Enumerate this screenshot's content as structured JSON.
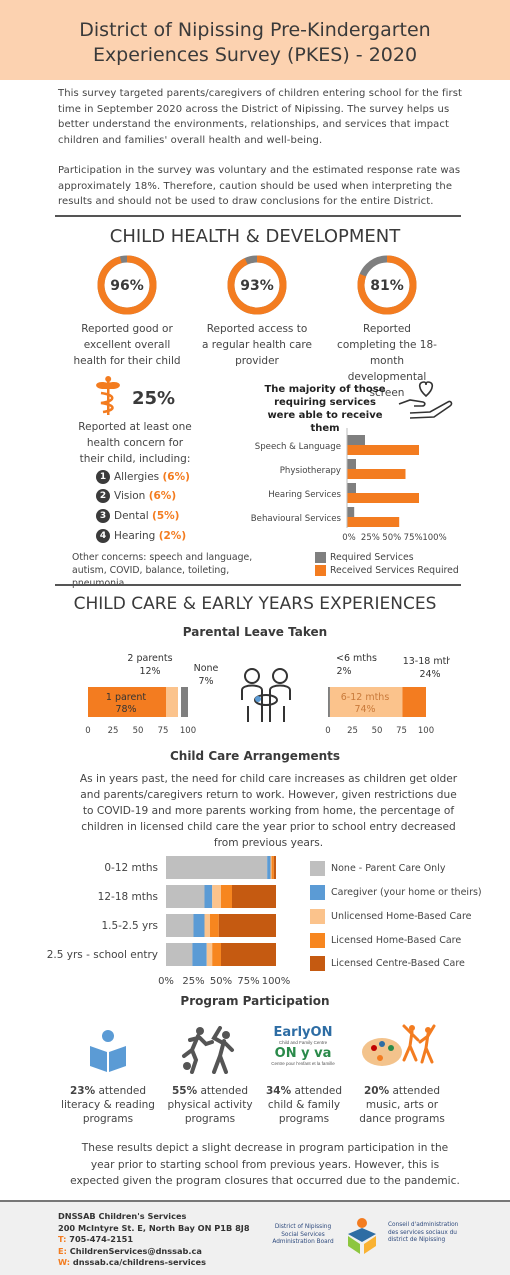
{
  "header": {
    "title_line1": "District of Nipissing Pre-Kindergarten",
    "title_line2": "Experiences Survey (PKES) - 2020"
  },
  "intro": {
    "p1": "This survey targeted parents/caregivers of children entering school for the first time in September 2020 across the District of Nipissing.  The survey helps us better understand the environments, relationships, and services that impact children and families' overall health and well-being.",
    "p2": "Participation in the survey was voluntary and the estimated response rate was approximately 18%.  Therefore, caution should be used when interpreting the results and should not be used to draw conclusions for the entire District."
  },
  "colors": {
    "orange": "#f37c20",
    "gray": "#7f7f7f",
    "dark": "#3b3b3b",
    "light_orange": "#fbc38c",
    "blue": "#5b9bd5",
    "dark_orange": "#c55a11",
    "light_gray": "#bfbfbf"
  },
  "health": {
    "title": "CHILD HEALTH & DEVELOPMENT",
    "donuts": [
      {
        "value": 96,
        "label": "96%",
        "text": "Reported good or excellent overall health for their child"
      },
      {
        "value": 93,
        "label": "93%",
        "text": "Reported access to a regular health care provider"
      },
      {
        "value": 81,
        "label": "81%",
        "text": "Reported completing the 18-month developmental screen"
      }
    ],
    "concern_icon": "caduceus-icon",
    "concern_pct": "25%",
    "concern_text": "Reported at least one health concern for their child, including:",
    "concerns": [
      {
        "num": "1",
        "name": "Allergies",
        "pct": "(6%)"
      },
      {
        "num": "2",
        "name": "Vision",
        "pct": "(6%)"
      },
      {
        "num": "3",
        "name": "Dental",
        "pct": "(5%)"
      },
      {
        "num": "4",
        "name": "Hearing",
        "pct": "(2%)"
      }
    ],
    "other_concerns": "Other concerns: speech and language, autism, COVID, balance, toileting, pneumonia",
    "services_heading": "The majority of those requiring services were able to receive them",
    "services_icon": "hands-heart-icon"
  },
  "chart_data": [
    {
      "type": "bar",
      "orientation": "horizontal",
      "categories": [
        "Speech & Language",
        "Physiotherapy",
        "Hearing Services",
        "Behavioural Services"
      ],
      "series": [
        {
          "name": "Required Services",
          "values": [
            20,
            10,
            10,
            8
          ]
        },
        {
          "name": "Received Services Required",
          "values": [
            80,
            65,
            80,
            58
          ]
        }
      ],
      "xticks": [
        "0%",
        "25%",
        "50%",
        "75%",
        "100%"
      ],
      "xlim": [
        0,
        100
      ]
    },
    {
      "type": "bar",
      "orientation": "horizontal",
      "stacked": true,
      "title": "Parental Leave Taken",
      "categories": [
        "1 parent",
        "2 parents",
        "None"
      ],
      "values": [
        78,
        12,
        7
      ],
      "xticks": [
        "0",
        "25",
        "50",
        "75",
        "100"
      ],
      "xlim": [
        0,
        100
      ]
    },
    {
      "type": "bar",
      "orientation": "horizontal",
      "stacked": true,
      "categories": [
        "<6 mths",
        "6-12 mths",
        "13-18 mths"
      ],
      "values": [
        2,
        74,
        24
      ],
      "xticks": [
        "0",
        "25",
        "50",
        "75",
        "100"
      ],
      "xlim": [
        0,
        100
      ]
    },
    {
      "type": "bar",
      "orientation": "horizontal",
      "stacked": true,
      "title": "Child Care Arrangements",
      "categories": [
        "0-12 mths",
        "12-18 mths",
        "1.5-2.5 yrs",
        "2.5 yrs - school entry"
      ],
      "series": [
        {
          "name": "None - Parent Care Only",
          "values": [
            92,
            35,
            25,
            24
          ]
        },
        {
          "name": "Caregiver (your home or theirs)",
          "values": [
            3,
            7,
            10,
            13
          ]
        },
        {
          "name": "Unlicensed Home-Based Care",
          "values": [
            1,
            8,
            5,
            5
          ]
        },
        {
          "name": "Licensed Home-Based Care",
          "values": [
            2,
            10,
            8,
            8
          ]
        },
        {
          "name": "Licensed Centre-Based Care",
          "values": [
            2,
            40,
            52,
            50
          ]
        }
      ],
      "xticks": [
        "0%",
        "25%",
        "50%",
        "75%",
        "100%"
      ],
      "xlim": [
        0,
        100
      ]
    }
  ],
  "childcare": {
    "title": "CHILD CARE & EARLY YEARS EXPERIENCES",
    "leave_title": "Parental Leave Taken",
    "leave": {
      "one_parent": "1 parent",
      "one_parent_pct": "78%",
      "two_parents": "2 parents",
      "two_parents_pct": "12%",
      "none": "None",
      "none_pct": "7%",
      "lt6": "<6 mths",
      "lt6_pct": "2%",
      "m6_12": "6-12 mths",
      "m6_12_pct": "74%",
      "m13_18": "13-18 mths",
      "m13_18_pct": "24%",
      "family_icon": "family-icon"
    },
    "arr_title": "Child Care Arrangements",
    "arr_text": "As in years past, the need for child care increases as children get older and parents/caregivers return to work. However, given restrictions due to COVID-19 and more parents working from home, the percentage of children in licensed child care the year prior to school entry decreased from previous years."
  },
  "program": {
    "title": "Program Participation",
    "items": [
      {
        "icon": "book-reader-icon",
        "pct": "23%",
        "rest": "attended literacy & reading programs"
      },
      {
        "icon": "sports-icon",
        "pct": "55%",
        "rest": "attended physical activity programs"
      },
      {
        "icon": "earlyon-logo",
        "pct": "34%",
        "rest": "attended child & family programs"
      },
      {
        "icon": "arts-dance-icon",
        "pct": "20%",
        "rest": "attended music, arts or dance programs"
      }
    ],
    "earlyon": {
      "l1": "EarlyON",
      "l2": "Child and Family Centre",
      "l3": "ON y va",
      "l4": "Centre pour l'enfant et la famille"
    },
    "closing": "These results depict a slight decrease in program participation in the year prior to starting school from previous years.  However, this is expected given the program closures that occurred due to the pandemic."
  },
  "footer": {
    "org": "DNSSAB Children's Services",
    "address": "200 McIntyre St. E, North Bay ON P1B 8J8",
    "t_key": "T:",
    "t_val": "705-474-2151",
    "e_key": "E:",
    "e_val": "ChildrenServices@dnssab.ca",
    "w_key": "W:",
    "w_val": "dnssab.ca/childrens-services",
    "board_en": "District of Nipissing Social Services Administration Board",
    "board_fr": "Conseil d'administration des services sociaux du district de Nipissing"
  }
}
